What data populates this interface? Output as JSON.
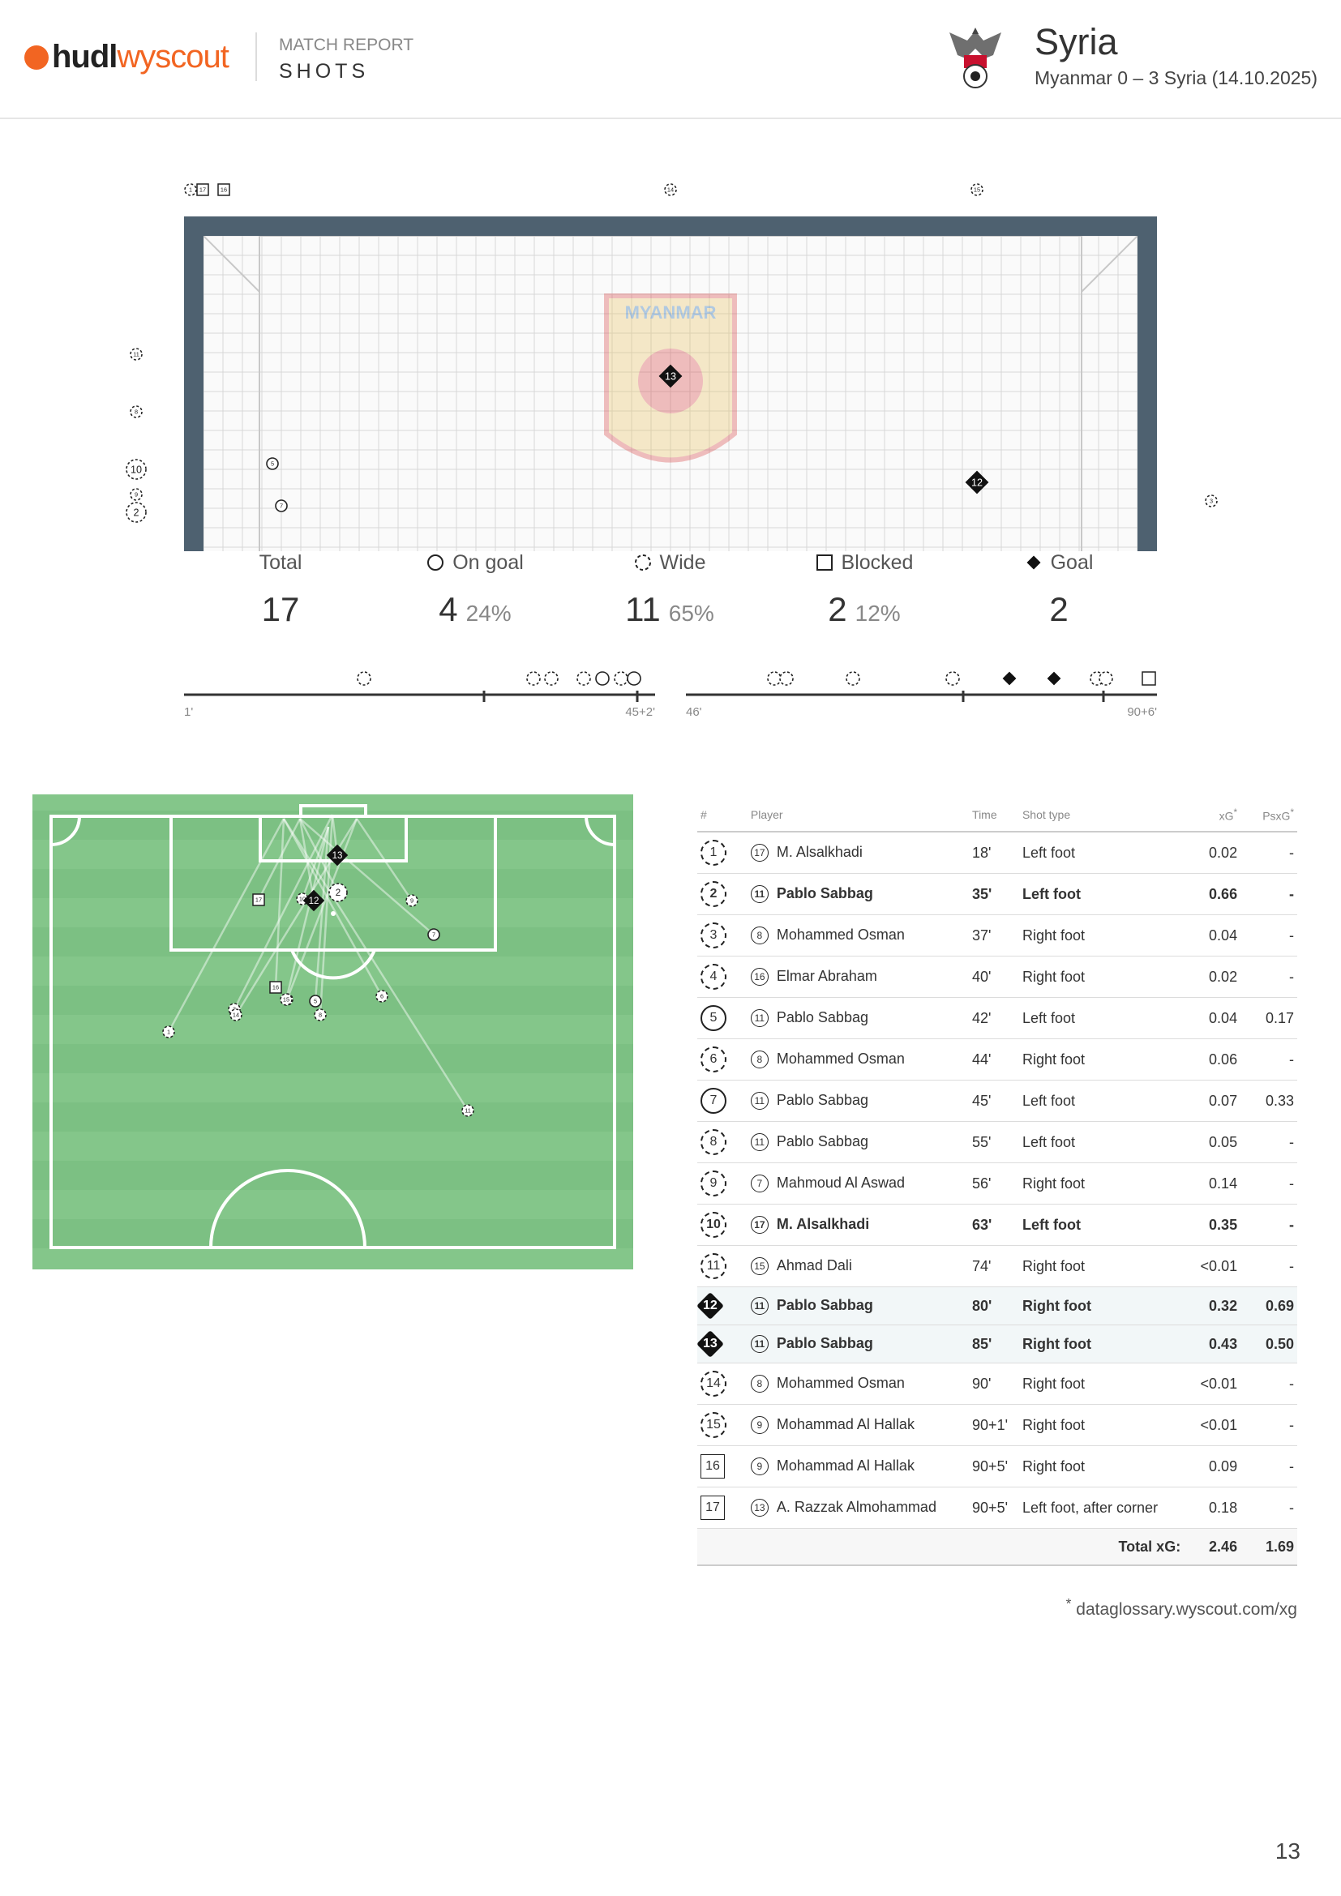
{
  "header": {
    "logo_hudl": "hudl",
    "logo_wyscout": "wyscout",
    "report_kicker": "MATCH REPORT",
    "report_section": "SHOTS",
    "team_name": "Syria",
    "match_line": "Myanmar 0 – 3 Syria (14.10.2025)"
  },
  "goal_view": {
    "opponent_badge_text": "MYANMAR"
  },
  "summary": {
    "total": {
      "label": "Total",
      "value": "17"
    },
    "on_goal": {
      "label": "On goal",
      "value": "4",
      "pct": "24%"
    },
    "wide": {
      "label": "Wide",
      "value": "11",
      "pct": "65%"
    },
    "blocked": {
      "label": "Blocked",
      "value": "2",
      "pct": "12%"
    },
    "goal": {
      "label": "Goal",
      "value": "2"
    }
  },
  "timeline": {
    "first_half": {
      "start": "1'",
      "end": "45+2'"
    },
    "second_half": {
      "start": "46'",
      "end": "90+6'"
    }
  },
  "table": {
    "headers": {
      "num": "#",
      "player": "Player",
      "time": "Time",
      "shot_type": "Shot type",
      "xg": "xG",
      "xg_mark": "*",
      "psxg": "PsxG",
      "psxg_mark": "*"
    },
    "rows": [
      {
        "n": "1",
        "result": "wide",
        "pnum": "17",
        "player": "M. Alsalkhadi",
        "time": "18'",
        "type": "Left foot",
        "xg": "0.02",
        "psxg": "-",
        "bold": false
      },
      {
        "n": "2",
        "result": "wide",
        "pnum": "11",
        "player": "Pablo Sabbag",
        "time": "35'",
        "type": "Left foot",
        "xg": "0.66",
        "psxg": "-",
        "bold": true
      },
      {
        "n": "3",
        "result": "wide",
        "pnum": "8",
        "player": "Mohammed Osman",
        "time": "37'",
        "type": "Right foot",
        "xg": "0.04",
        "psxg": "-",
        "bold": false
      },
      {
        "n": "4",
        "result": "wide",
        "pnum": "16",
        "player": "Elmar Abraham",
        "time": "40'",
        "type": "Right foot",
        "xg": "0.02",
        "psxg": "-",
        "bold": false
      },
      {
        "n": "5",
        "result": "ong",
        "pnum": "11",
        "player": "Pablo Sabbag",
        "time": "42'",
        "type": "Left foot",
        "xg": "0.04",
        "psxg": "0.17",
        "bold": false
      },
      {
        "n": "6",
        "result": "wide",
        "pnum": "8",
        "player": "Mohammed Osman",
        "time": "44'",
        "type": "Right foot",
        "xg": "0.06",
        "psxg": "-",
        "bold": false
      },
      {
        "n": "7",
        "result": "ong",
        "pnum": "11",
        "player": "Pablo Sabbag",
        "time": "45'",
        "type": "Left foot",
        "xg": "0.07",
        "psxg": "0.33",
        "bold": false
      },
      {
        "n": "8",
        "result": "wide",
        "pnum": "11",
        "player": "Pablo Sabbag",
        "time": "55'",
        "type": "Left foot",
        "xg": "0.05",
        "psxg": "-",
        "bold": false
      },
      {
        "n": "9",
        "result": "wide",
        "pnum": "7",
        "player": "Mahmoud Al Aswad",
        "time": "56'",
        "type": "Right foot",
        "xg": "0.14",
        "psxg": "-",
        "bold": false
      },
      {
        "n": "10",
        "result": "wide",
        "pnum": "17",
        "player": "M. Alsalkhadi",
        "time": "63'",
        "type": "Left foot",
        "xg": "0.35",
        "psxg": "-",
        "bold": true
      },
      {
        "n": "11",
        "result": "wide",
        "pnum": "15",
        "player": "Ahmad Dali",
        "time": "74'",
        "type": "Right foot",
        "xg": "<0.01",
        "psxg": "-",
        "bold": false
      },
      {
        "n": "12",
        "result": "gl",
        "pnum": "11",
        "player": "Pablo Sabbag",
        "time": "80'",
        "type": "Right foot",
        "xg": "0.32",
        "psxg": "0.69",
        "bold": true
      },
      {
        "n": "13",
        "result": "gl",
        "pnum": "11",
        "player": "Pablo Sabbag",
        "time": "85'",
        "type": "Right foot",
        "xg": "0.43",
        "psxg": "0.50",
        "bold": true
      },
      {
        "n": "14",
        "result": "wide",
        "pnum": "8",
        "player": "Mohammed Osman",
        "time": "90'",
        "type": "Right foot",
        "xg": "<0.01",
        "psxg": "-",
        "bold": false
      },
      {
        "n": "15",
        "result": "wide",
        "pnum": "9",
        "player": "Mohammad Al Hallak",
        "time": "90+1'",
        "type": "Right foot",
        "xg": "<0.01",
        "psxg": "-",
        "bold": false
      },
      {
        "n": "16",
        "result": "blk",
        "pnum": "9",
        "player": "Mohammad Al Hallak",
        "time": "90+5'",
        "type": "Right foot",
        "xg": "0.09",
        "psxg": "-",
        "bold": false
      },
      {
        "n": "17",
        "result": "blk",
        "pnum": "13",
        "player": "A. Razzak Almohammad",
        "time": "90+5'",
        "type": "Left foot, after corner",
        "xg": "0.18",
        "psxg": "-",
        "bold": false
      }
    ],
    "total_label": "Total xG:",
    "total_xg": "2.46",
    "total_psxg": "1.69"
  },
  "footnote": {
    "mark": "*",
    "text": "dataglossary.wyscout.com/xg"
  },
  "page_number": "13",
  "colors": {
    "brand": "#f26522",
    "pitch": "#84c68a",
    "pitch_stripe": "#7cc083",
    "frame": "#4e6170"
  }
}
